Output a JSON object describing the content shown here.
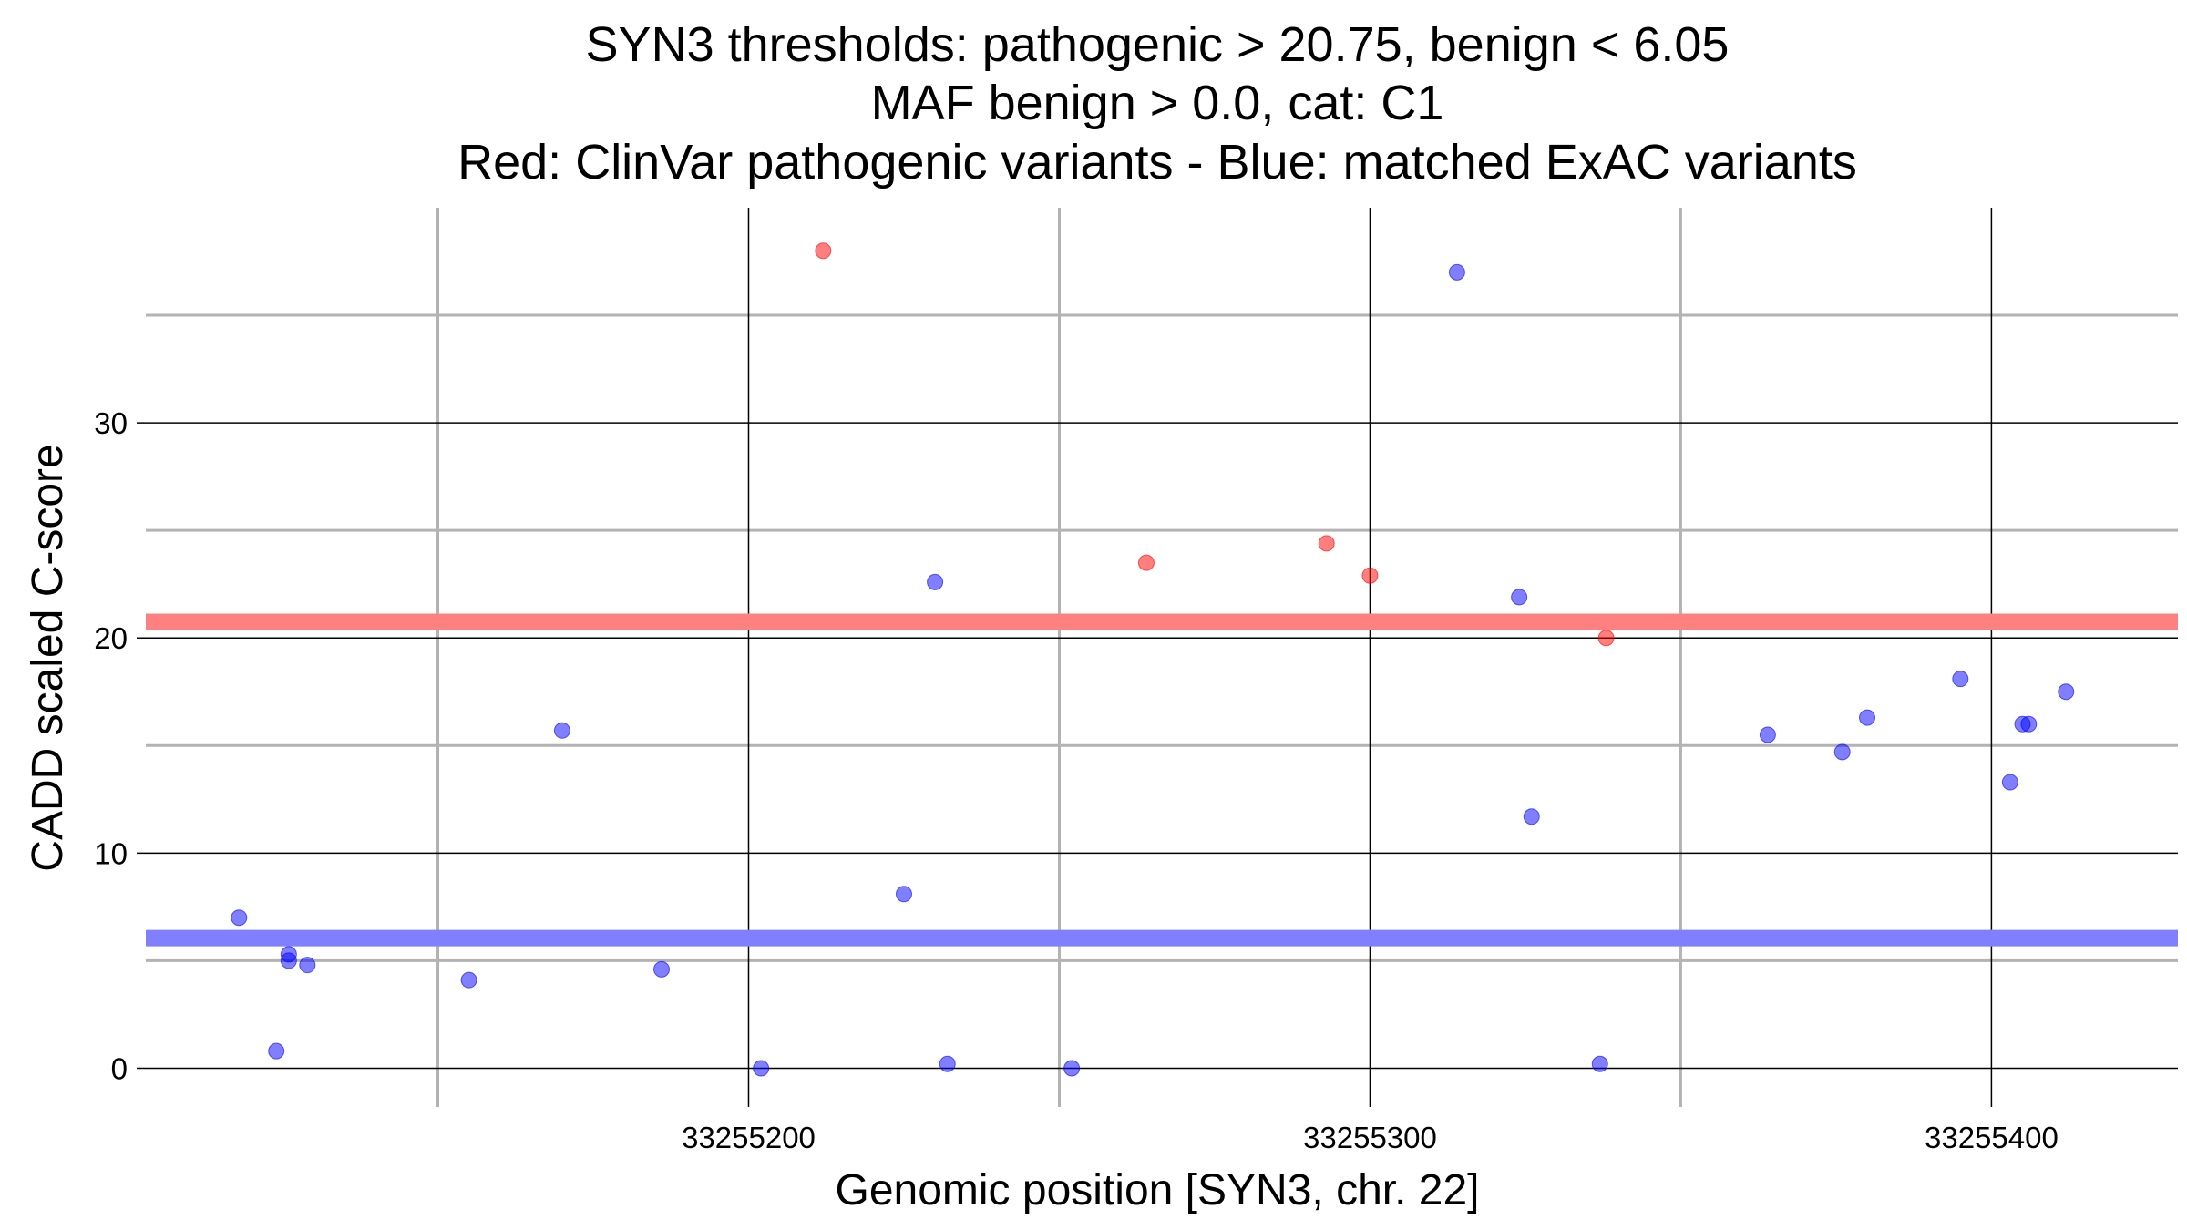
{
  "chart_data": {
    "type": "scatter",
    "title": [
      "SYN3 thresholds: pathogenic > 20.75, benign < 6.05",
      "MAF benign > 0.0, cat: C1",
      "Red: ClinVar pathogenic variants - Blue: matched ExAC variants"
    ],
    "xlabel": "Genomic position [SYN3, chr. 22]",
    "ylabel": "CADD scaled C-score",
    "xlim": [
      33255103,
      33255430
    ],
    "ylim": [
      -1.8,
      40.0
    ],
    "x_ticks": [
      33255200,
      33255300,
      33255400
    ],
    "x_tick_labels": [
      "33255200",
      "33255300",
      "33255400"
    ],
    "x_minor_gridlines": [
      33255150,
      33255250,
      33255350
    ],
    "y_ticks": [
      0,
      10,
      20,
      30
    ],
    "y_tick_labels": [
      "0",
      "10",
      "20",
      "30"
    ],
    "y_minor_gridlines": [
      5,
      15,
      25,
      35
    ],
    "grid": true,
    "thresholds": [
      {
        "name": "pathogenic",
        "value": 20.75,
        "color": "#ff8080"
      },
      {
        "name": "benign",
        "value": 6.05,
        "color": "#8080ff"
      }
    ],
    "series": [
      {
        "color": "#ff0000",
        "points": [
          {
            "x": 33255212,
            "y": 38.0
          },
          {
            "x": 33255264,
            "y": 23.5
          },
          {
            "x": 33255293,
            "y": 24.4
          },
          {
            "x": 33255300,
            "y": 22.9
          },
          {
            "x": 33255338,
            "y": 20.0
          }
        ]
      },
      {
        "color": "#0000ff",
        "points": [
          {
            "x": 33255118,
            "y": 7.0
          },
          {
            "x": 33255124,
            "y": 0.8
          },
          {
            "x": 33255126,
            "y": 5.3
          },
          {
            "x": 33255126,
            "y": 5.0
          },
          {
            "x": 33255129,
            "y": 4.8
          },
          {
            "x": 33255155,
            "y": 4.1
          },
          {
            "x": 33255170,
            "y": 15.7
          },
          {
            "x": 33255186,
            "y": 4.6
          },
          {
            "x": 33255202,
            "y": 0.0
          },
          {
            "x": 33255225,
            "y": 8.1
          },
          {
            "x": 33255230,
            "y": 22.6
          },
          {
            "x": 33255232,
            "y": 0.2
          },
          {
            "x": 33255252,
            "y": 0.0
          },
          {
            "x": 33255314,
            "y": 37.0
          },
          {
            "x": 33255324,
            "y": 21.9
          },
          {
            "x": 33255326,
            "y": 11.7
          },
          {
            "x": 33255337,
            "y": 0.2
          },
          {
            "x": 33255364,
            "y": 15.5
          },
          {
            "x": 33255376,
            "y": 14.7
          },
          {
            "x": 33255380,
            "y": 16.3
          },
          {
            "x": 33255395,
            "y": 18.1
          },
          {
            "x": 33255403,
            "y": 13.3
          },
          {
            "x": 33255405,
            "y": 16.0
          },
          {
            "x": 33255406,
            "y": 16.0
          },
          {
            "x": 33255412,
            "y": 17.5
          }
        ]
      }
    ]
  }
}
